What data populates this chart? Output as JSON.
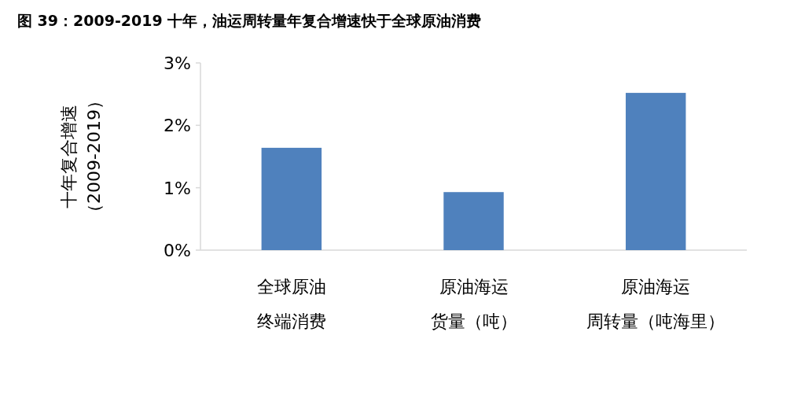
{
  "chart_data": {
    "type": "bar",
    "title": "图 39：2009-2019 十年，油运周转量年复合增速快于全球原油消费",
    "ylabel": "十年复合增速（2009-2019）",
    "categories": [
      "全球原油终端消费",
      "原油海运货量（吨）",
      "原油海运周转量（吨海里）"
    ],
    "values": [
      1.64,
      0.93,
      2.52
    ],
    "color": "#4f81bd",
    "ylim": [
      0,
      3
    ],
    "yticks": [
      {
        "value": 0,
        "label": "0%"
      },
      {
        "value": 1,
        "label": "1%"
      },
      {
        "value": 2,
        "label": "2%"
      },
      {
        "value": 3,
        "label": "3%"
      }
    ],
    "grid": false
  }
}
